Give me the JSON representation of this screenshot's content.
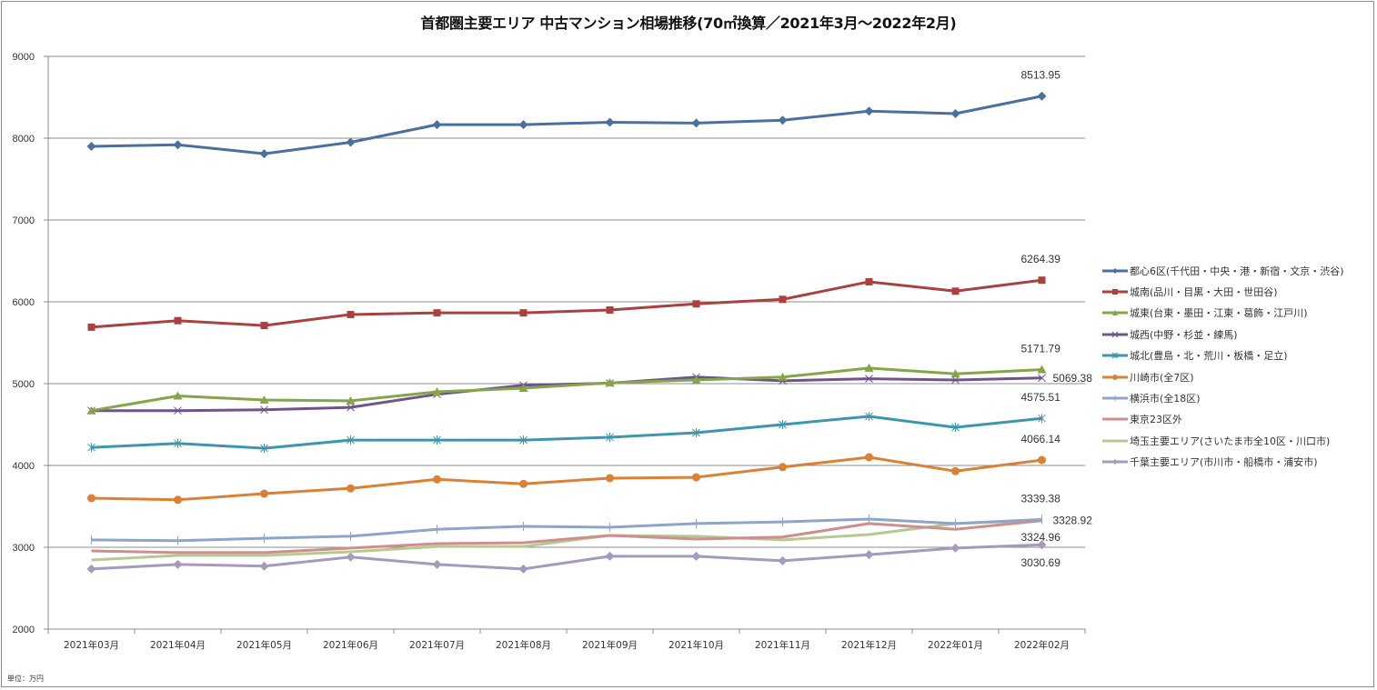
{
  "chart_data": {
    "type": "line",
    "title": "首都圏主要エリア 中古マンション相場推移(70㎡換算／2021年3月～2022年2月)",
    "xlabel": "",
    "ylabel": "",
    "unit_note": "単位：万円",
    "ylim": [
      2000,
      9000
    ],
    "yticks": [
      2000,
      3000,
      4000,
      5000,
      6000,
      7000,
      8000,
      9000
    ],
    "grid": true,
    "legend_position": "right",
    "categories": [
      "2021年03月",
      "2021年04月",
      "2021年05月",
      "2021年06月",
      "2021年07月",
      "2021年08月",
      "2021年09月",
      "2021年10月",
      "2021年11月",
      "2021年12月",
      "2022年01月",
      "2022年02月"
    ],
    "series": [
      {
        "name": "都心6区(千代田・中央・港・新宿・文京・渋谷)",
        "color": "#4a6fa0",
        "marker": "diamond",
        "values": [
          7900,
          7920,
          7810,
          7950,
          8165,
          8165,
          8195,
          8185,
          8220,
          8330,
          8300,
          8513.95
        ],
        "end_label": "8513.95"
      },
      {
        "name": "城南(品川・目黒・大田・世田谷)",
        "color": "#a8423f",
        "marker": "square",
        "values": [
          5690,
          5770,
          5710,
          5845,
          5865,
          5865,
          5900,
          5975,
          6030,
          6245,
          6130,
          6264.39
        ],
        "end_label": "6264.39"
      },
      {
        "name": "城東(台東・墨田・江東・葛飾・江戸川)",
        "color": "#86a44a",
        "marker": "triangle",
        "values": [
          4670,
          4850,
          4800,
          4790,
          4900,
          4945,
          5010,
          5045,
          5080,
          5190,
          5120,
          5171.79
        ],
        "end_label": "5171.79"
      },
      {
        "name": "城西(中野・杉並・練馬)",
        "color": "#6e548d",
        "marker": "x",
        "values": [
          4670,
          4670,
          4680,
          4710,
          4870,
          4980,
          5005,
          5080,
          5035,
          5060,
          5045,
          5069.38
        ],
        "end_label": "5069.38"
      },
      {
        "name": "城北(豊島・北・荒川・板橋・足立)",
        "color": "#3d96ae",
        "marker": "asterisk",
        "values": [
          4220,
          4270,
          4210,
          4310,
          4310,
          4310,
          4345,
          4400,
          4500,
          4600,
          4465,
          4575.51
        ],
        "end_label": "4575.51"
      },
      {
        "name": "川崎市(全7区)",
        "color": "#da8137",
        "marker": "circle",
        "values": [
          3600,
          3580,
          3655,
          3720,
          3830,
          3775,
          3845,
          3855,
          3980,
          4100,
          3930,
          4066.14
        ],
        "end_label": "4066.14"
      },
      {
        "name": "横浜市(全18区)",
        "color": "#8ea5cb",
        "marker": "plus",
        "values": [
          3090,
          3080,
          3110,
          3135,
          3220,
          3255,
          3245,
          3290,
          3310,
          3345,
          3290,
          3339.38
        ],
        "end_label": "3339.38"
      },
      {
        "name": "東京23区外",
        "color": "#ce8e8d",
        "marker": "none",
        "values": [
          2955,
          2935,
          2935,
          2990,
          3045,
          3055,
          3145,
          3100,
          3125,
          3290,
          3220,
          3324.96
        ],
        "end_label": "3324.96"
      },
      {
        "name": "埼玉主要エリア(さいたま市全10区・川口市)",
        "color": "#b5ca92",
        "marker": "none",
        "values": [
          2845,
          2900,
          2900,
          2945,
          3010,
          3010,
          3145,
          3135,
          3090,
          3155,
          3290,
          3328.92
        ],
        "end_label": "3328.92"
      },
      {
        "name": "千葉主要エリア(市川市・船橋市・浦安市)",
        "color": "#a599bd",
        "marker": "diamond",
        "values": [
          2735,
          2790,
          2770,
          2880,
          2790,
          2735,
          2890,
          2890,
          2835,
          2910,
          2990,
          3030.69
        ],
        "end_label": "3030.69"
      }
    ]
  }
}
